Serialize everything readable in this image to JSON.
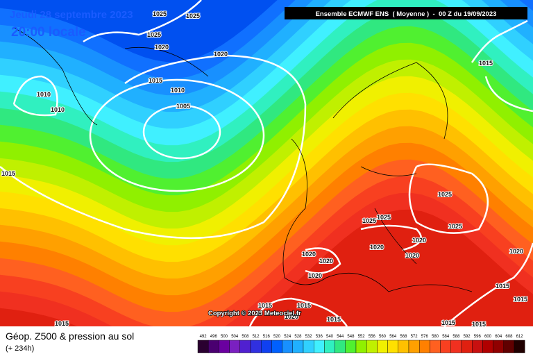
{
  "header": {
    "date": "Jeudi 28 septembre 2023",
    "time": "20:00 locale",
    "model": "Ensemble ECMWF ENS  ( Moyenne )  -  00 Z du 19/09/2023"
  },
  "copyright": "Copyright © 2023 Meteociel.fr",
  "isobar_labels": [
    "1025",
    "1025",
    "1025",
    "1020",
    "1020",
    "1015",
    "1010",
    "1005",
    "1010",
    "1010",
    "1015",
    "1015",
    "1025",
    "1025",
    "1025",
    "1025",
    "1020",
    "1020",
    "1020",
    "1020",
    "1020",
    "1020",
    "1015",
    "1015",
    "1020",
    "1015",
    "1015",
    "1015",
    "1015",
    "1015",
    "1015",
    "1020"
  ],
  "legend": {
    "title": "Géop. Z500 & pression au sol",
    "subtitle": "(+ 234h)",
    "levels": [
      492,
      496,
      500,
      504,
      508,
      512,
      516,
      520,
      524,
      528,
      532,
      536,
      540,
      544,
      548,
      552,
      556,
      560,
      564,
      568,
      572,
      576,
      580,
      584,
      588,
      592,
      596,
      600,
      604,
      608,
      612
    ],
    "colors": [
      "#2a0030",
      "#4a0070",
      "#6a00a0",
      "#7a20c0",
      "#5020d0",
      "#3030e0",
      "#1040f0",
      "#0060ff",
      "#1890ff",
      "#20b0ff",
      "#30d0ff",
      "#40f0ff",
      "#30f0c0",
      "#30e880",
      "#50f030",
      "#90f000",
      "#c0f000",
      "#f0f000",
      "#ffe000",
      "#ffc000",
      "#ffa000",
      "#ff8000",
      "#ff6020",
      "#f84020",
      "#f03020",
      "#e02010",
      "#c81010",
      "#b00000",
      "#900000",
      "#600000",
      "#200000"
    ]
  }
}
